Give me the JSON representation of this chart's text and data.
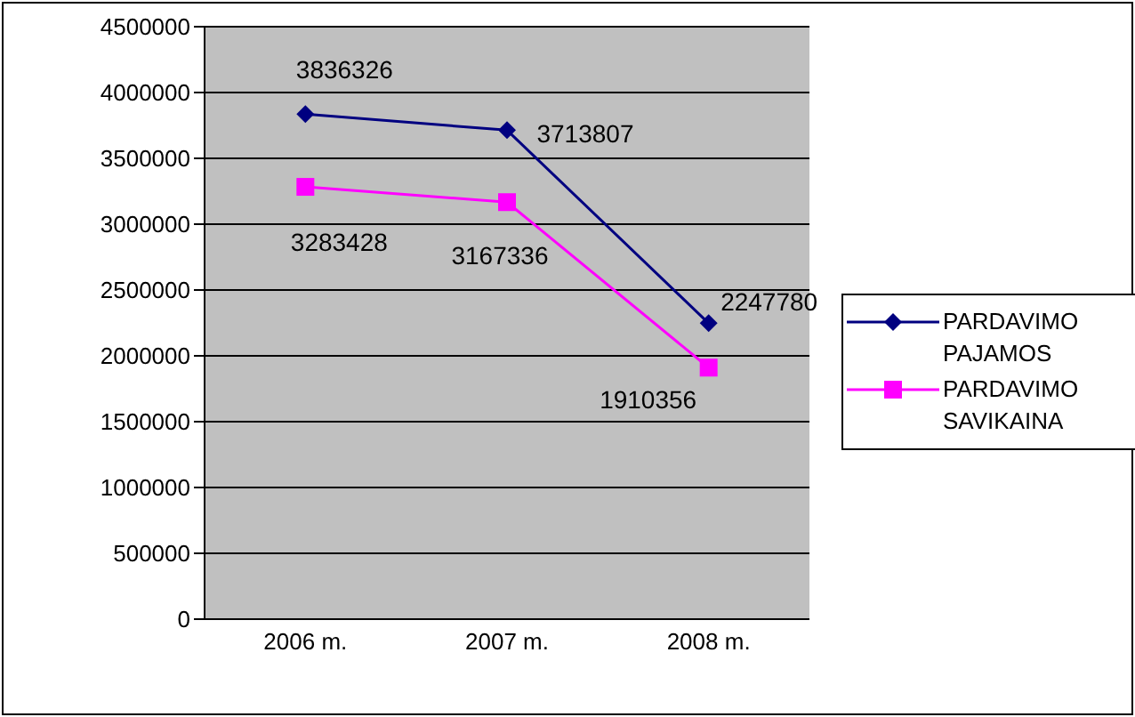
{
  "chart_data": {
    "type": "line",
    "categories": [
      "2006 m.",
      "2007 m.",
      "2008 m."
    ],
    "series": [
      {
        "name": "PARDAVIMO PAJAMOS",
        "color": "#000080",
        "marker": "diamond",
        "values": [
          3836326,
          3713807,
          2247780
        ]
      },
      {
        "name": "PARDAVIMO SAVIKAINA",
        "color": "#ff00ff",
        "marker": "square",
        "values": [
          3283428,
          3167336,
          1910356
        ]
      }
    ],
    "ylim": [
      0,
      4500000
    ],
    "yticks": [
      0,
      500000,
      1000000,
      1500000,
      2000000,
      2500000,
      3000000,
      3500000,
      4000000,
      4500000
    ],
    "grid": "y",
    "legend": "right",
    "data_labels": true
  }
}
